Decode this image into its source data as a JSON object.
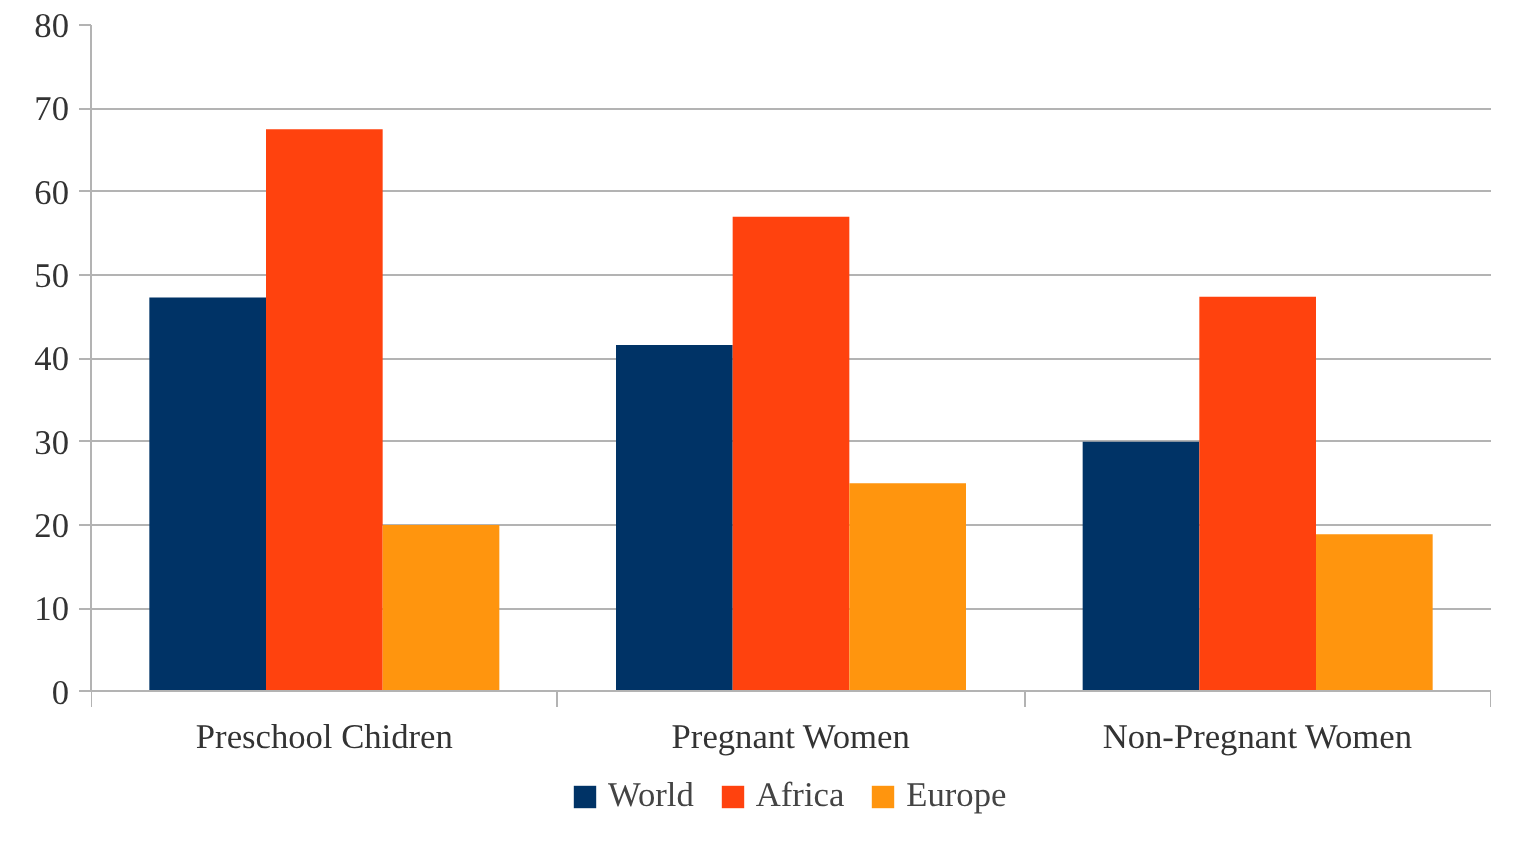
{
  "chart_data": {
    "type": "bar",
    "categories": [
      "Preschool Chidren",
      "Pregnant Women",
      "Non-Pregnant Women"
    ],
    "series": [
      {
        "name": "World",
        "color": "#003366",
        "values": [
          47.3,
          41.6,
          30.0
        ]
      },
      {
        "name": "Africa",
        "color": "#ff420e",
        "values": [
          67.5,
          57.0,
          47.4
        ]
      },
      {
        "name": "Europe",
        "color": "#ff950e",
        "values": [
          20.0,
          25.0,
          18.9
        ]
      }
    ],
    "ylim": [
      0,
      80
    ],
    "yticks": [
      0,
      10,
      20,
      30,
      40,
      50,
      60,
      70,
      80
    ],
    "grid": "y",
    "legend": "bottom"
  }
}
